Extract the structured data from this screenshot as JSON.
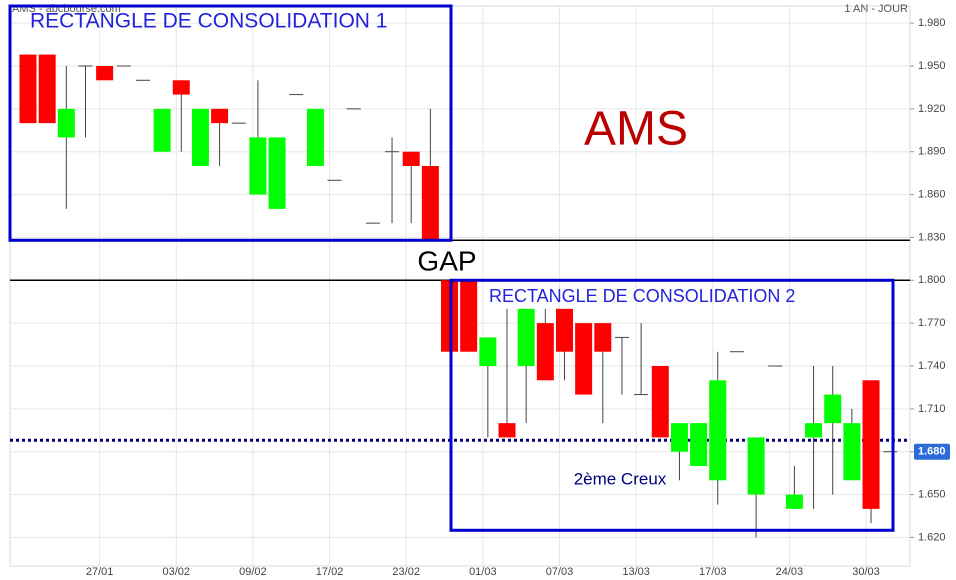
{
  "chart_data": {
    "type": "candlestick",
    "source": "AMS - abcbourse.com",
    "period": "1 AN - JOUR",
    "title": "AMS",
    "categories": [
      null,
      null,
      null,
      null,
      "27/01",
      null,
      null,
      null,
      "03/02",
      null,
      null,
      null,
      "09/02",
      null,
      null,
      null,
      "17/02",
      null,
      null,
      null,
      "23/02",
      null,
      null,
      null,
      "01/03",
      null,
      null,
      null,
      "07/03",
      null,
      null,
      null,
      "13/03",
      null,
      null,
      null,
      "17/03",
      null,
      null,
      null,
      "24/03",
      null,
      null,
      null,
      "30/03",
      null
    ],
    "open": [
      1.958,
      1.958,
      1.9,
      1.95,
      1.95,
      1.95,
      1.94,
      1.89,
      1.94,
      1.88,
      1.92,
      1.91,
      1.86,
      1.85,
      1.93,
      1.88,
      1.87,
      1.92,
      1.84,
      1.89,
      1.89,
      1.88,
      1.8,
      1.8,
      1.74,
      1.7,
      1.74,
      1.77,
      1.78,
      1.77,
      1.77,
      1.76,
      1.72,
      1.74,
      1.68,
      1.67,
      1.66,
      1.75,
      1.65,
      1.74,
      1.64,
      1.69,
      1.7,
      1.66,
      1.73,
      1.68
    ],
    "high": [
      1.958,
      1.958,
      1.95,
      1.95,
      1.95,
      1.95,
      1.94,
      1.92,
      1.94,
      1.92,
      1.92,
      1.91,
      1.94,
      1.9,
      1.93,
      1.92,
      1.87,
      1.92,
      1.84,
      1.9,
      1.89,
      1.92,
      1.8,
      1.8,
      1.76,
      1.78,
      1.78,
      1.78,
      1.78,
      1.77,
      1.77,
      1.76,
      1.77,
      1.74,
      1.7,
      1.7,
      1.75,
      1.75,
      1.69,
      1.74,
      1.67,
      1.74,
      1.74,
      1.71,
      1.73,
      1.68
    ],
    "low": [
      1.91,
      1.91,
      1.85,
      1.9,
      1.94,
      1.95,
      1.94,
      1.89,
      1.89,
      1.88,
      1.88,
      1.91,
      1.86,
      1.85,
      1.93,
      1.88,
      1.87,
      1.92,
      1.84,
      1.84,
      1.84,
      1.828,
      1.75,
      1.75,
      1.69,
      1.69,
      1.7,
      1.73,
      1.73,
      1.72,
      1.7,
      1.72,
      1.72,
      1.69,
      1.66,
      1.67,
      1.643,
      1.75,
      1.62,
      1.74,
      1.64,
      1.64,
      1.65,
      1.66,
      1.63,
      1.68
    ],
    "close": [
      1.91,
      1.91,
      1.92,
      1.95,
      1.94,
      1.95,
      1.94,
      1.92,
      1.93,
      1.92,
      1.91,
      1.91,
      1.9,
      1.9,
      1.93,
      1.92,
      1.87,
      1.92,
      1.84,
      1.89,
      1.88,
      1.828,
      1.75,
      1.75,
      1.76,
      1.69,
      1.78,
      1.73,
      1.75,
      1.72,
      1.75,
      1.76,
      1.72,
      1.69,
      1.7,
      1.7,
      1.73,
      1.75,
      1.69,
      1.74,
      1.65,
      1.7,
      1.72,
      1.7,
      1.64,
      1.68
    ],
    "up_color": "#00ff00",
    "down_color": "#ff0000",
    "ylim": [
      1.6,
      1.992
    ],
    "yticks": [
      {
        "value": 1.62,
        "label": "1.620"
      },
      {
        "value": 1.65,
        "label": "1.650"
      },
      {
        "value": 1.68,
        "label": "1.680"
      },
      {
        "value": 1.71,
        "label": "1.710"
      },
      {
        "value": 1.74,
        "label": "1.740"
      },
      {
        "value": 1.77,
        "label": "1.770"
      },
      {
        "value": 1.8,
        "label": "1.800"
      },
      {
        "value": 1.83,
        "label": "1.830"
      },
      {
        "value": 1.86,
        "label": "1.860"
      },
      {
        "value": 1.89,
        "label": "1.890"
      },
      {
        "value": 1.92,
        "label": "1.920"
      },
      {
        "value": 1.95,
        "label": "1.950"
      },
      {
        "value": 1.98,
        "label": "1.980"
      }
    ],
    "grid": true,
    "current_price": {
      "value": 1.68,
      "label": "1.680"
    },
    "gap_lines": [
      1.828,
      1.8
    ],
    "gap_label": "GAP",
    "support_line": 1.688,
    "support_label": "2ème Creux",
    "rectangles": [
      {
        "label": "RECTANGLE DE CONSOLIDATION 1",
        "ylim": [
          1.828,
          1.992
        ]
      },
      {
        "label": "RECTANGLE DE CONSOLIDATION 2",
        "ylim": [
          1.625,
          1.8
        ]
      }
    ]
  }
}
